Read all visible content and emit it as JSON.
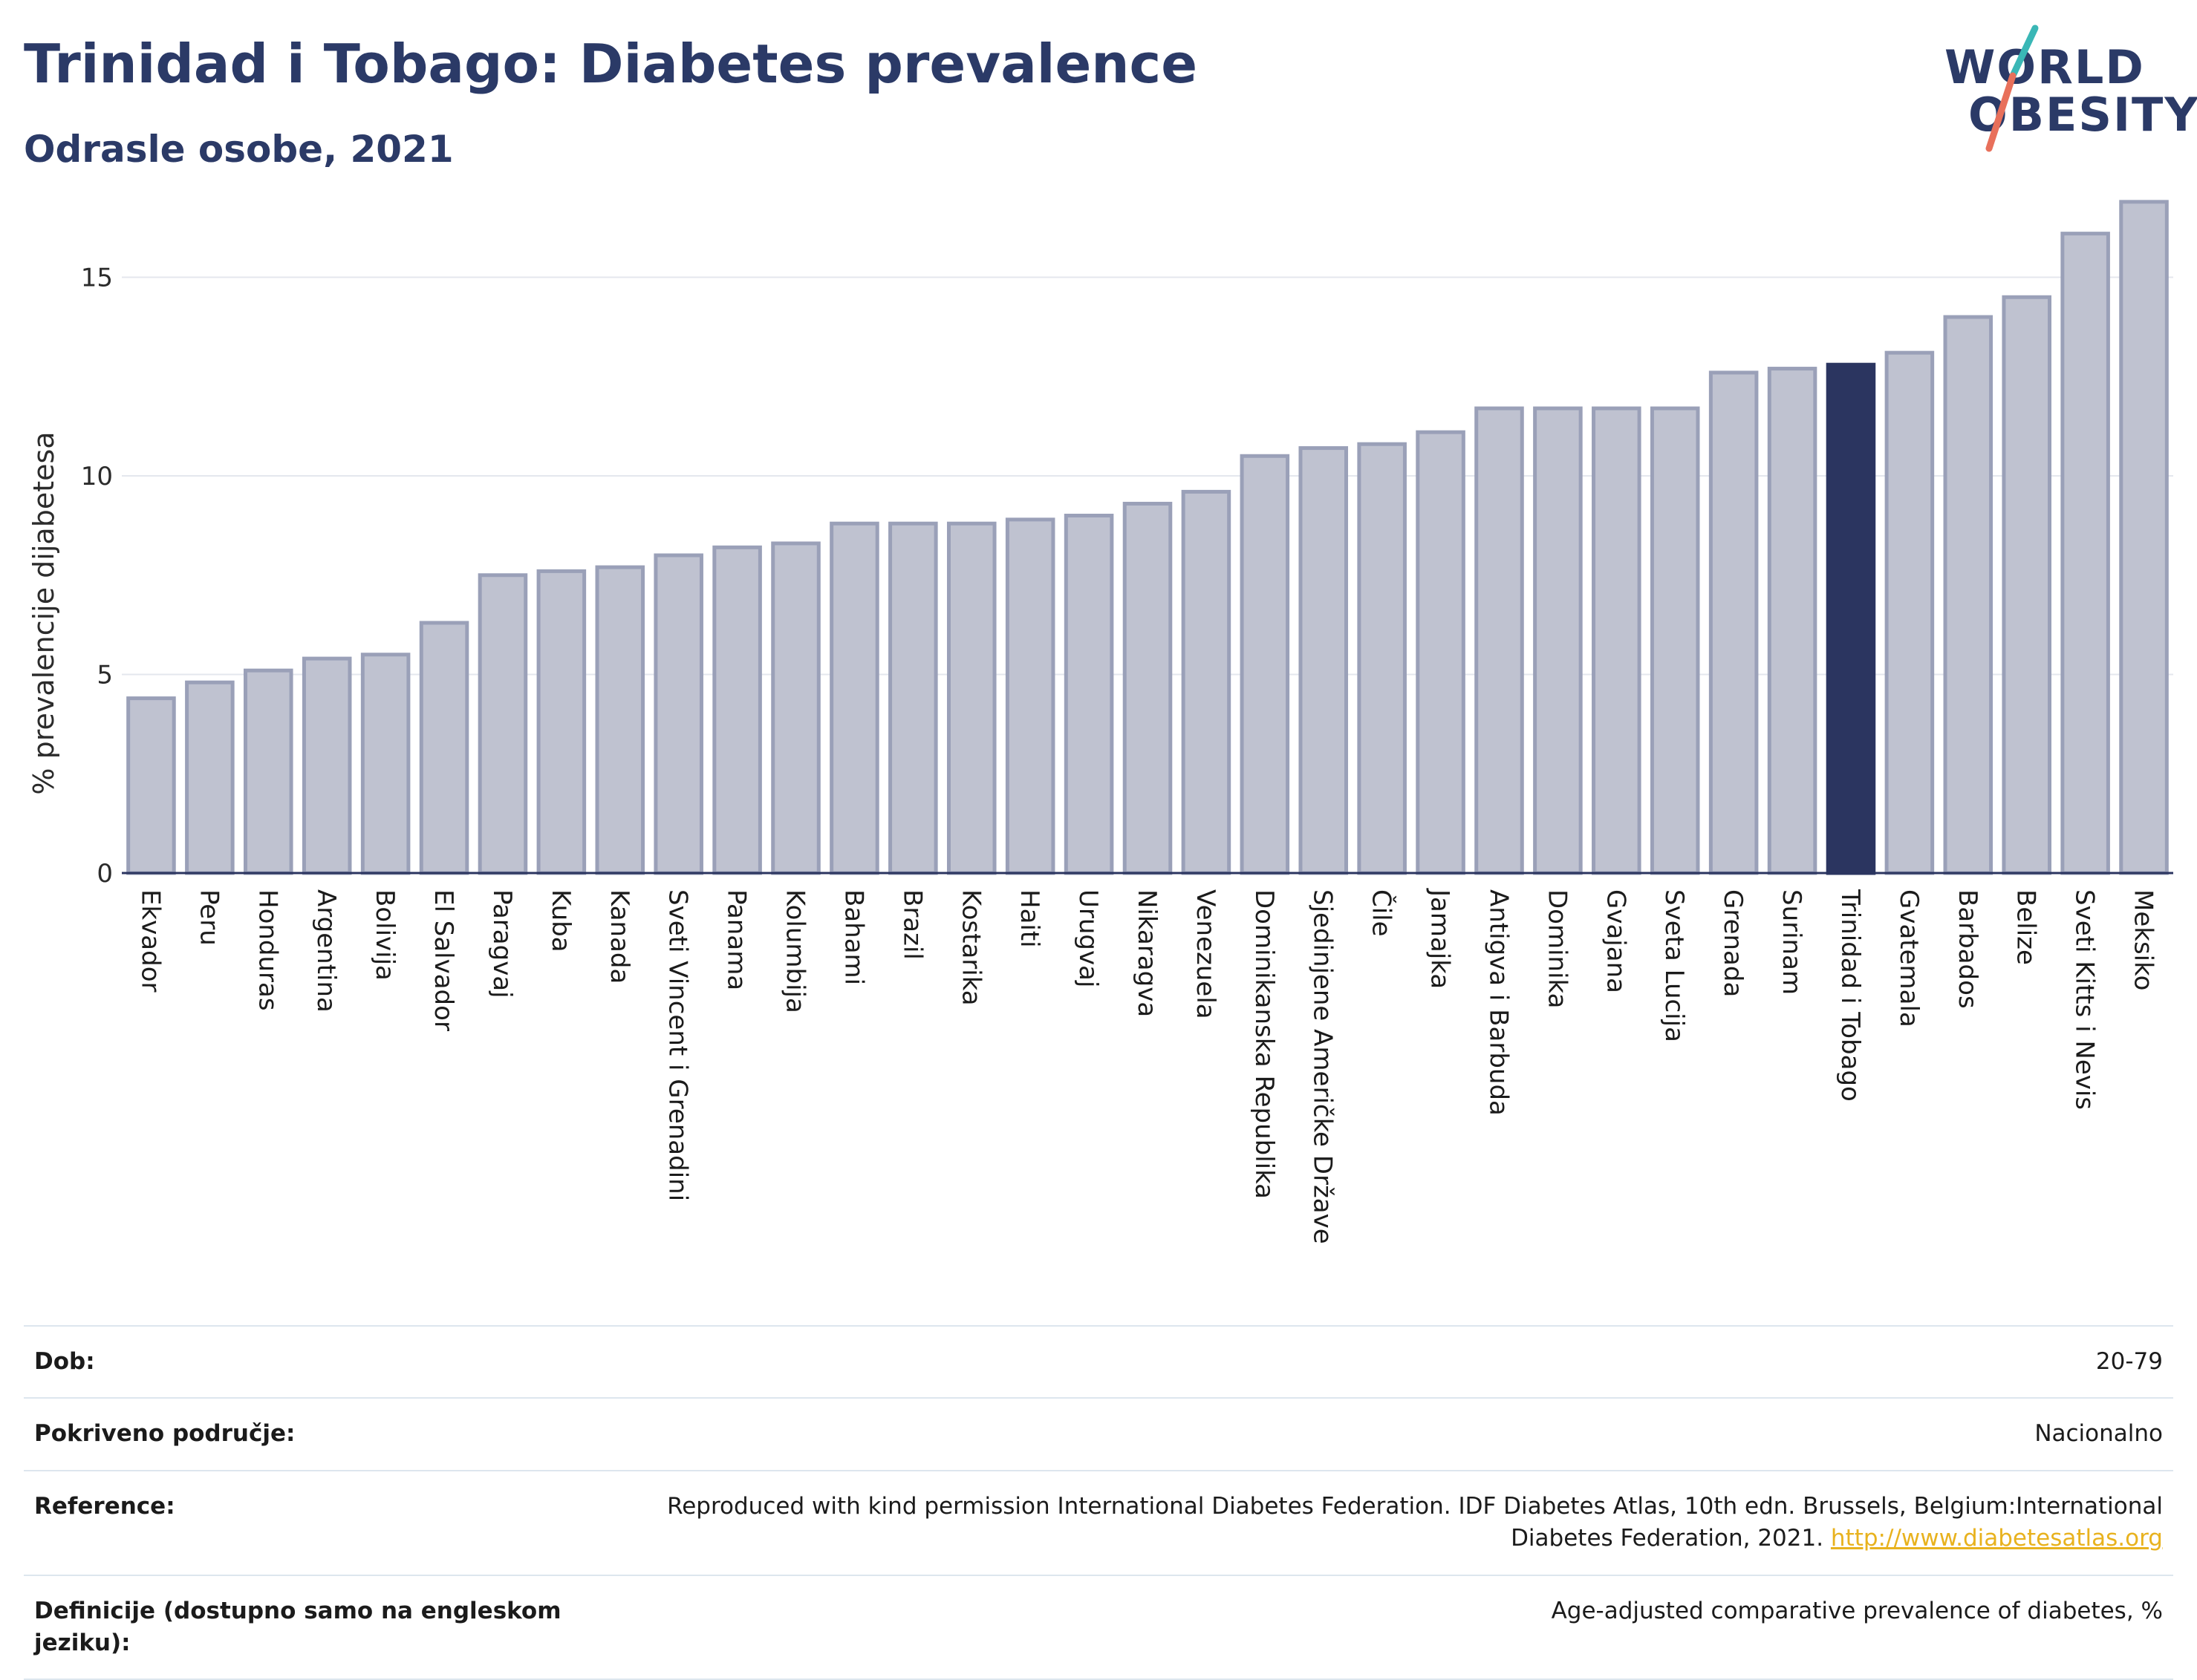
{
  "header": {
    "title": "Trinidad i Tobago: Diabetes prevalence",
    "subtitle": "Odrasle osobe, 2021"
  },
  "logo": {
    "line1": "WORLD",
    "line2": "OBESITY"
  },
  "colors": {
    "title": "#2b3a67",
    "bar": "#bfc2d0",
    "bar_border": "#9aa0b8",
    "highlight": "#2b3560",
    "logo_teal": "#3ab7b6",
    "logo_coral": "#e8705b"
  },
  "chart_data": {
    "type": "bar",
    "ylabel": "% prevalencije dijabetesa",
    "ylim": [
      0,
      17
    ],
    "yticks": [
      0,
      5,
      10,
      15
    ],
    "grid": true,
    "highlight": "Trinidad i Tobago",
    "categories": [
      "Ekvador",
      "Peru",
      "Honduras",
      "Argentina",
      "Bolivija",
      "El Salvador",
      "Paragvaj",
      "Kuba",
      "Kanada",
      "Sveti Vincent i Grenadini",
      "Panama",
      "Kolumbija",
      "Bahami",
      "Brazil",
      "Kostarika",
      "Haiti",
      "Urugvaj",
      "Nikaragva",
      "Venezuela",
      "Dominikanska Republika",
      "Sjedinjene Američke Države",
      "Čile",
      "Jamajka",
      "Antigva i Barbuda",
      "Dominika",
      "Gvajana",
      "Sveta Lucija",
      "Grenada",
      "Surinam",
      "Trinidad i Tobago",
      "Gvatemala",
      "Barbados",
      "Belize",
      "Sveti Kitts i Nevis",
      "Meksiko"
    ],
    "values": [
      4.4,
      4.8,
      5.1,
      5.4,
      5.5,
      6.3,
      7.5,
      7.6,
      7.7,
      8.0,
      8.2,
      8.3,
      8.8,
      8.8,
      8.8,
      8.9,
      9.0,
      9.3,
      9.6,
      10.5,
      10.7,
      10.8,
      11.1,
      11.7,
      11.7,
      11.7,
      11.7,
      12.6,
      12.7,
      12.8,
      13.1,
      14.0,
      14.5,
      16.1,
      16.9
    ]
  },
  "info": {
    "rows": [
      {
        "key": "Dob:",
        "value": "20-79"
      },
      {
        "key": "Pokriveno područje:",
        "value": "Nacionalno"
      },
      {
        "key": "Reference:",
        "value": "Reproduced with kind permission International Diabetes Federation.  IDF Diabetes Atlas, 10th edn. Brussels, Belgium:International Diabetes Federation, 2021.",
        "link": "http://www.diabetesatlas.org"
      },
      {
        "key": "Definicije (dostupno samo na engleskom jeziku):",
        "value": "Age-adjusted comparative prevalence of diabetes, %"
      }
    ]
  }
}
